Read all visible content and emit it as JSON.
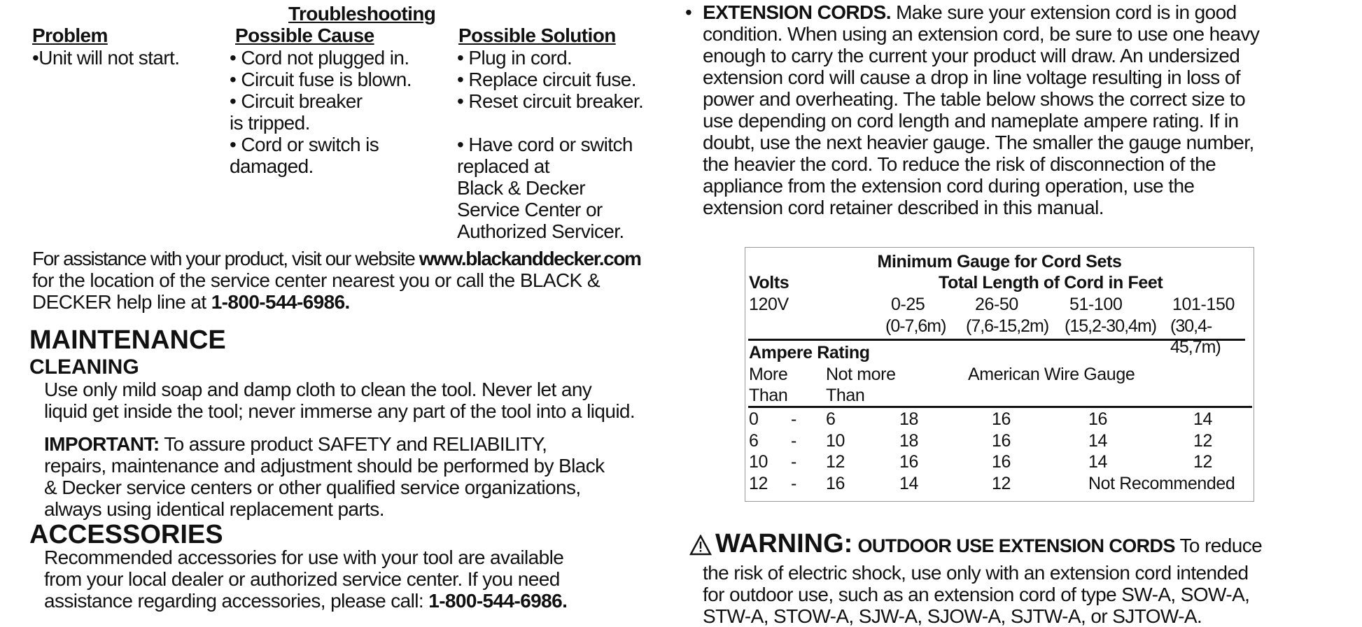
{
  "troubleshooting": {
    "title": "Troubleshooting",
    "headers": [
      "Problem",
      "Possible Cause",
      "Possible Solution"
    ],
    "problem": "•Unit will not start.",
    "causes": [
      "• Cord not plugged in.",
      "• Circuit fuse is blown.",
      "• Circuit breaker",
      "is tripped.",
      "• Cord or switch is",
      "damaged."
    ],
    "solutions": [
      "• Plug in cord.",
      "• Replace circuit fuse.",
      "• Reset circuit breaker.",
      "",
      "• Have cord or switch",
      "replaced at",
      "Black & Decker",
      "Service Center or",
      "Authorized Servicer."
    ]
  },
  "assistance": {
    "text1": "For assistance with your product, visit our website ",
    "website": "www.blackanddecker.com",
    "text2": "for the location of the service center nearest you or call the BLACK &",
    "text3": "DECKER help line at ",
    "phone": "1-800-544-6986."
  },
  "maintenance": {
    "title": "MAINTENANCE",
    "cleaning_title": "CLEANING",
    "cleaning_lines": [
      "Use only mild soap and damp cloth to clean the tool. Never let any",
      "liquid get inside the tool; never immerse any part of the tool into a liquid."
    ],
    "important_label": "IMPORTANT:",
    "important_lines": [
      " To assure product SAFETY and RELIABILITY,",
      "repairs, maintenance and adjustment should be performed by Black",
      "& Decker service centers or other qualified service organizations,",
      "always using identical replacement parts."
    ]
  },
  "accessories": {
    "title": "ACCESSORIES",
    "lines": [
      "Recommended accessories for use with your tool are available",
      "from your local dealer or authorized service center. If you need",
      "assistance regarding accessories, please call: "
    ],
    "phone": "1-800-544-6986."
  },
  "extension_cords": {
    "bullet": "•",
    "label": "EXTENSION CORDS.",
    "lines": [
      " Make sure your extension cord is in good",
      "condition. When using an extension cord, be sure to use one heavy",
      "enough to carry the current your product will draw. An undersized",
      "extension cord will cause a drop in line voltage resulting in loss of",
      "power and overheating. The table below shows the correct size to",
      "use depending on cord length and nameplate ampere rating. If in",
      "doubt, use the next heavier gauge. The smaller the gauge number,",
      "the heavier the cord. To reduce the risk of disconnection of the",
      "appliance from the extension cord during operation, use the",
      "extension cord retainer described in this manual."
    ]
  },
  "gauge_table": {
    "title": "Minimum Gauge for Cord Sets",
    "volts_label": "Volts",
    "length_label": "Total Length of Cord in Feet",
    "volts": "120V",
    "lengths_ft": [
      "0-25",
      "26-50",
      "51-100",
      "101-150"
    ],
    "lengths_m": [
      "(0-7,6m)",
      "(7,6-15,2m)",
      "(15,2-30,4m)",
      "(30,4-45,7m)"
    ],
    "ampere_label": "Ampere Rating",
    "more_than": [
      "More",
      "Than"
    ],
    "not_more_than": [
      "Not more",
      "Than"
    ],
    "awg_label": "American Wire Gauge",
    "rows": [
      {
        "from": "0",
        "dash": "-",
        "to": "6",
        "gauges": [
          "18",
          "16",
          "16",
          "14"
        ]
      },
      {
        "from": "6",
        "dash": "-",
        "to": "10",
        "gauges": [
          "18",
          "16",
          "14",
          "12"
        ]
      },
      {
        "from": "10",
        "dash": "-",
        "to": "12",
        "gauges": [
          "16",
          "16",
          "14",
          "12"
        ]
      },
      {
        "from": "12",
        "dash": "-",
        "to": "16",
        "gauges": [
          "14",
          "12",
          "Not Recommended",
          ""
        ]
      }
    ]
  },
  "warning": {
    "icon": "warning-triangle-icon",
    "label": "WARNING:",
    "sub": "OUTDOOR USE EXTENSION CORDS",
    "lines": [
      " To reduce",
      "the risk of electric shock, use only with an extension cord intended",
      "for outdoor use, such as an extension cord of type SW-A, SOW-A,",
      "STW-A, STOW-A, SJW-A, SJOW-A, SJTW-A, or SJTOW-A."
    ]
  }
}
